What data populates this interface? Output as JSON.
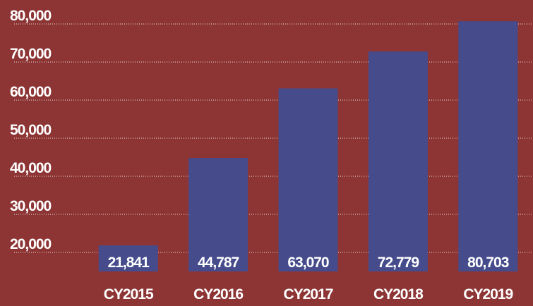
{
  "chart_data": {
    "type": "bar",
    "categories": [
      "CY2015",
      "CY2016",
      "CY2017",
      "CY2018",
      "CY2019"
    ],
    "values": [
      21841,
      44787,
      63070,
      72779,
      80703
    ],
    "value_labels": [
      "21,841",
      "44,787",
      "63,070",
      "72,779",
      "80,703"
    ],
    "color": "#464b8b",
    "ylim": [
      15000,
      81000
    ],
    "yticks": [
      {
        "value": 20000,
        "label": "20,000"
      },
      {
        "value": 30000,
        "label": "30,000"
      },
      {
        "value": 40000,
        "label": "40,000"
      },
      {
        "value": 50000,
        "label": "50,000"
      },
      {
        "value": 60000,
        "label": "60,000"
      },
      {
        "value": 70000,
        "label": "70,000"
      },
      {
        "value": 80000,
        "label": "80,000"
      }
    ],
    "grid": true
  }
}
